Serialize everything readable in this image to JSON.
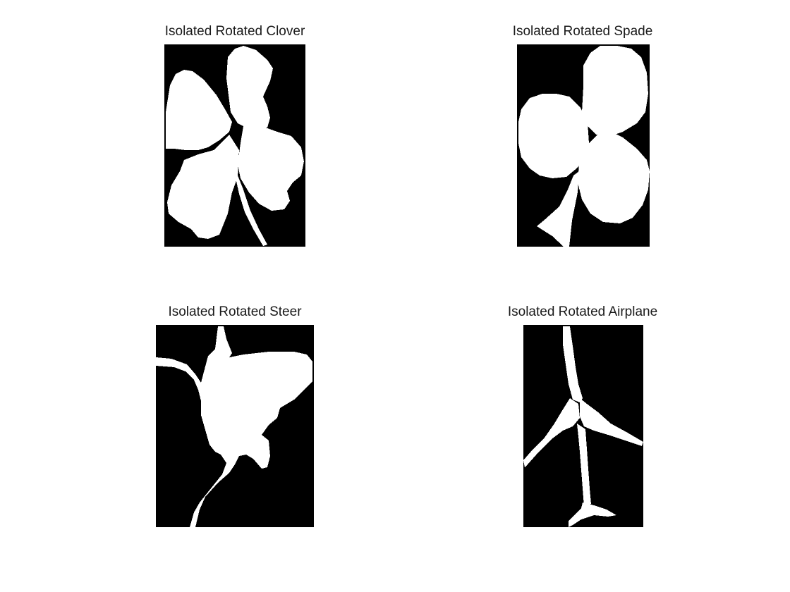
{
  "figure": {
    "panels": [
      {
        "title": "Isolated Rotated Clover"
      },
      {
        "title": "Isolated Rotated Spade"
      },
      {
        "title": "Isolated Rotated Steer"
      },
      {
        "title": "Isolated Rotated Airplane"
      }
    ]
  },
  "colors": {
    "background": "#ffffff",
    "image_background": "#000000",
    "shape_fill": "#ffffff",
    "title_text": "#1a1a1a"
  }
}
